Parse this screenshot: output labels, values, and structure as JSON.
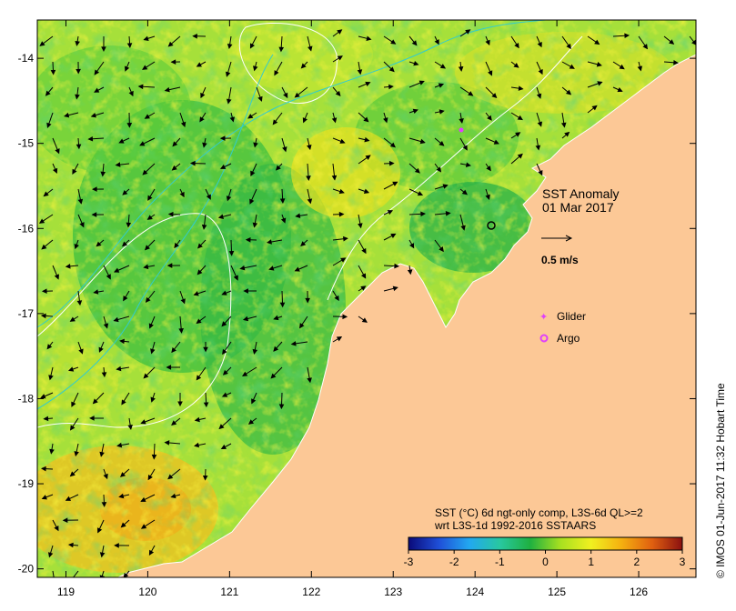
{
  "title": "SST Anomaly",
  "date": "01 Mar 2017",
  "vector_scale_label": "0.5 m/s",
  "legend": {
    "glider_label": "Glider",
    "argo_label": "Argo"
  },
  "colorbar": {
    "description_line1": "SST (°C) 6d ngt-only comp, L3S-6d QL>=2",
    "description_line2": "wrt L3S-1d 1992-2016 SSTAARS",
    "min": -3,
    "max": 3,
    "ticks": [
      "-3",
      "-2",
      "-1",
      "0",
      "1",
      "2",
      "3"
    ],
    "tick_values": [
      -3,
      -2,
      -1,
      0,
      1,
      2,
      3
    ]
  },
  "axes": {
    "x_ticks": [
      "119",
      "120",
      "121",
      "122",
      "123",
      "124",
      "125",
      "126"
    ],
    "x_values": [
      119,
      120,
      121,
      122,
      123,
      124,
      125,
      126
    ],
    "y_ticks": [
      "-14",
      "-15",
      "-16",
      "-17",
      "-18",
      "-19",
      "-20"
    ],
    "y_values": [
      -14,
      -15,
      -16,
      -17,
      -18,
      -19,
      -20
    ],
    "lon_range": [
      118.65,
      126.7
    ],
    "lat_range": [
      -20.1,
      -13.55
    ]
  },
  "credit": "© IMOS 01-Jun-2017 11:32 Hobart Time",
  "colors": {
    "land": "#fcc896",
    "glider": "#e040fb",
    "argo": "#e040fb",
    "vector": "#000000",
    "contour_cyan": "#33cccc",
    "contour_white": "#ffffff"
  },
  "colorbar_stops": [
    "#0a0a7a",
    "#1f4fd8",
    "#22a8f0",
    "#28c8a0",
    "#1fb040",
    "#a8e020",
    "#f0f020",
    "#f5b010",
    "#e06010",
    "#8a1010"
  ]
}
